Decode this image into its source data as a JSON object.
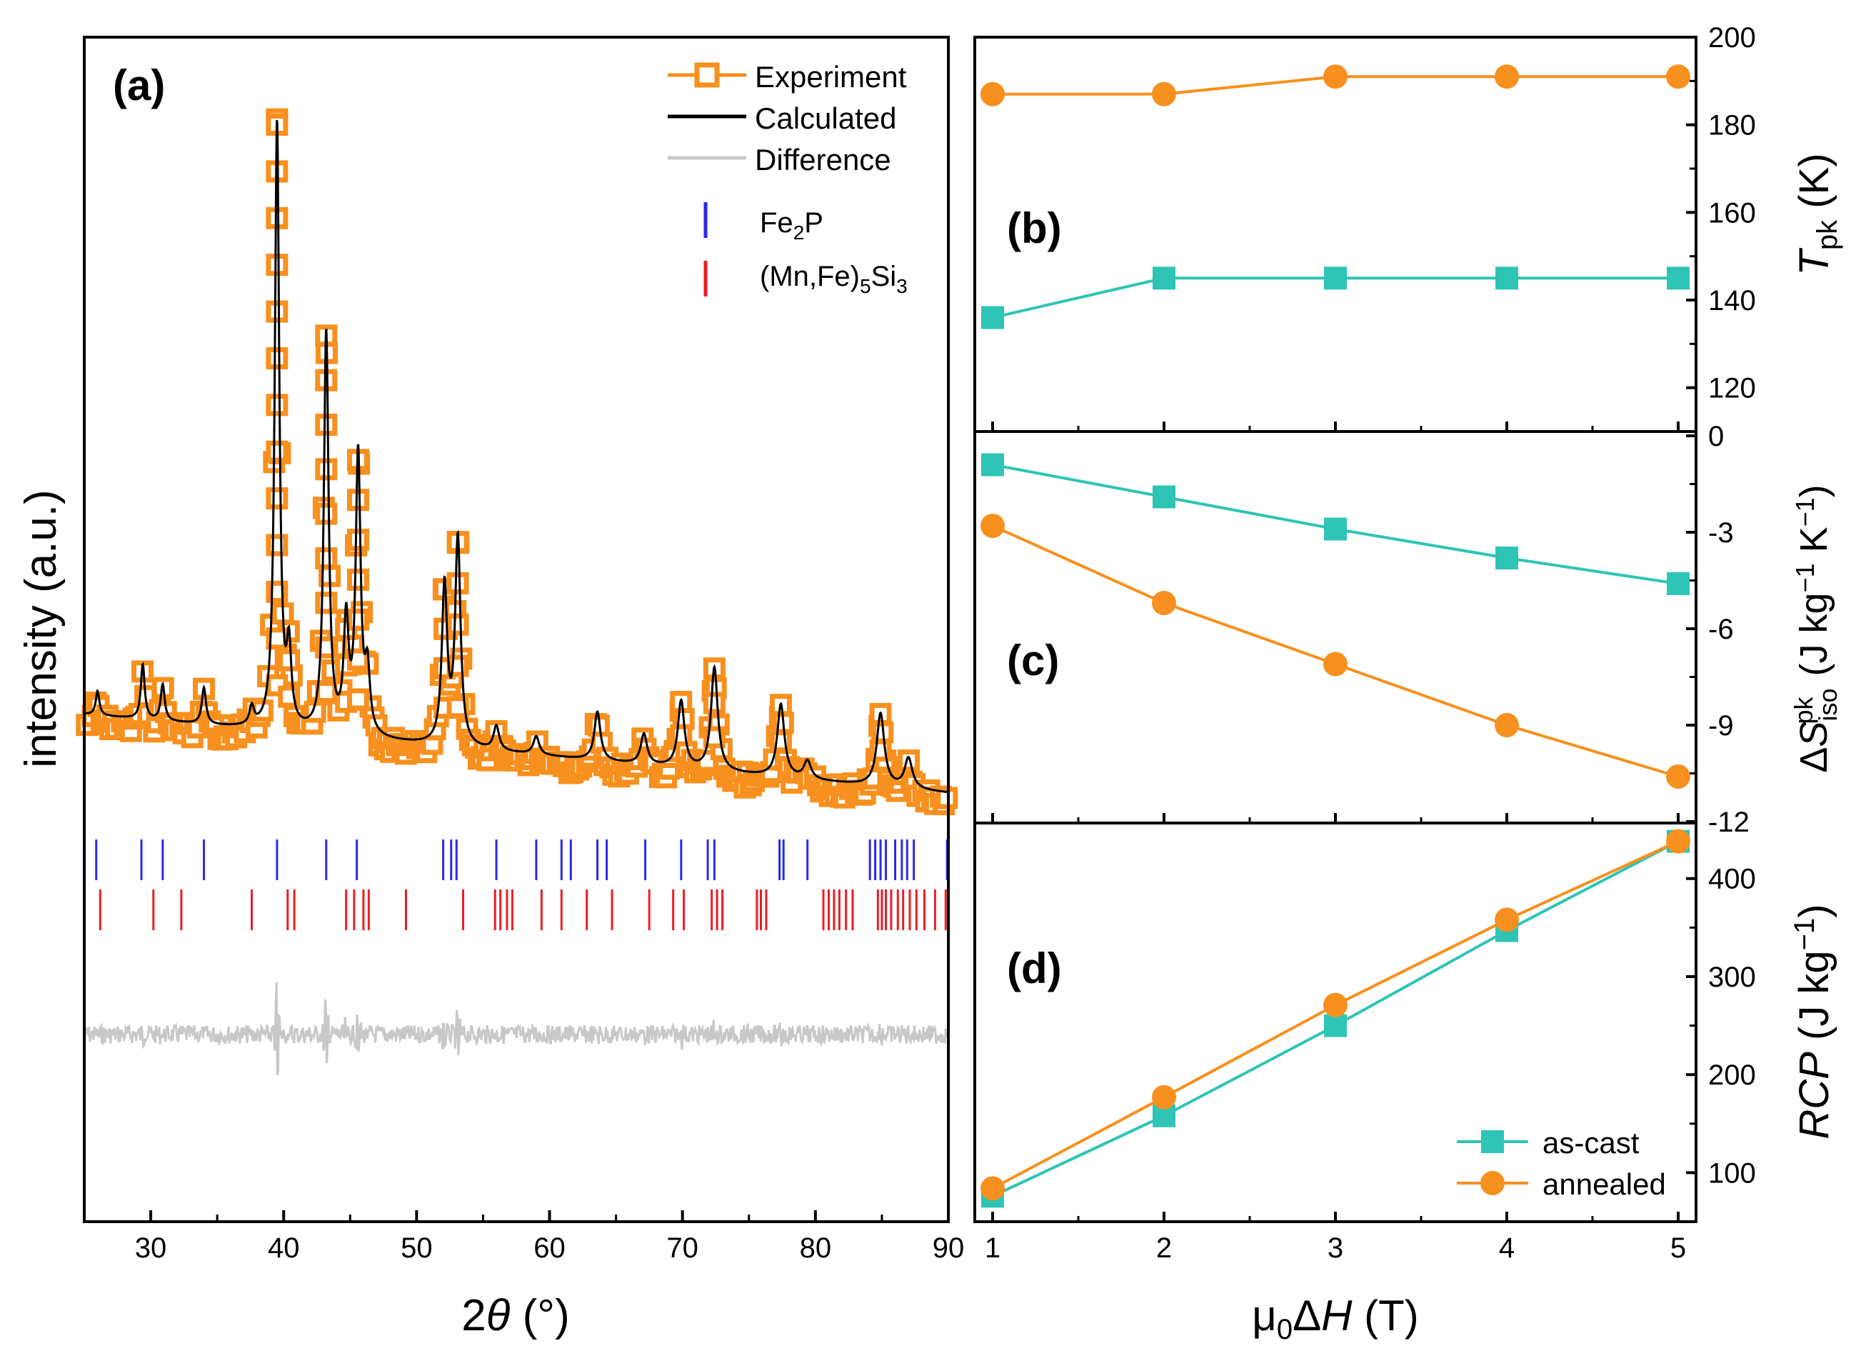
{
  "colors": {
    "experiment": "#f7901e",
    "calculated": "#000000",
    "difference": "#c8c8c8",
    "fe2p": "#2a2aee",
    "mn5si3": "#ee1c24",
    "as_cast": "#2ec4b6",
    "annealed": "#f7901e"
  },
  "panel_a": {
    "label": "(a)",
    "xlabel": "2θ (°)",
    "ylabel": "intensity (a.u.)",
    "xlim": [
      25,
      90
    ],
    "xticks": [
      "30",
      "40",
      "50",
      "60",
      "70",
      "80",
      "90"
    ],
    "legend": {
      "experiment": "Experiment",
      "calculated": "Calculated",
      "difference": "Difference",
      "fe2p": "Fe2P",
      "mn5si3": "(Mn,Fe)5Si3"
    }
  },
  "panel_b": {
    "label": "(b)",
    "ylabel": "Tpk (K)",
    "yticks": [
      "120",
      "140",
      "160",
      "180",
      "200"
    ]
  },
  "panel_c": {
    "label": "(c)",
    "ylabel": "ΔSisopk (J kg−1 K−1)",
    "yticks": [
      "0",
      "-3",
      "-6",
      "-9",
      "-12"
    ]
  },
  "panel_d": {
    "label": "(d)",
    "ylabel": "RCP (J kg−1)",
    "yticks": [
      "100",
      "200",
      "300",
      "400"
    ],
    "legend": {
      "as_cast": "as-cast",
      "annealed": "annealed"
    }
  },
  "right_xlabel": "μ0ΔH (T)",
  "right_xticks": [
    "1",
    "2",
    "3",
    "4",
    "5"
  ],
  "chart_data": [
    {
      "type": "line",
      "panel": "(a)",
      "xlabel": "2θ (°)",
      "ylabel": "intensity (a.u.)",
      "xlim": [
        25,
        90
      ],
      "peaks_calculated": [
        {
          "x": 26.0,
          "h": 0.04
        },
        {
          "x": 29.4,
          "h": 0.09
        },
        {
          "x": 30.9,
          "h": 0.06
        },
        {
          "x": 34.0,
          "h": 0.06
        },
        {
          "x": 37.6,
          "h": 0.03
        },
        {
          "x": 39.5,
          "h": 1.0
        },
        {
          "x": 40.4,
          "h": 0.12
        },
        {
          "x": 43.2,
          "h": 0.66
        },
        {
          "x": 44.7,
          "h": 0.18
        },
        {
          "x": 45.6,
          "h": 0.46
        },
        {
          "x": 46.3,
          "h": 0.1
        },
        {
          "x": 52.1,
          "h": 0.26
        },
        {
          "x": 53.1,
          "h": 0.34
        },
        {
          "x": 56.0,
          "h": 0.04
        },
        {
          "x": 59.0,
          "h": 0.03
        },
        {
          "x": 63.6,
          "h": 0.08
        },
        {
          "x": 67.1,
          "h": 0.05
        },
        {
          "x": 69.9,
          "h": 0.11
        },
        {
          "x": 72.4,
          "h": 0.17
        },
        {
          "x": 77.4,
          "h": 0.12
        },
        {
          "x": 79.4,
          "h": 0.03
        },
        {
          "x": 84.9,
          "h": 0.12
        },
        {
          "x": 87.0,
          "h": 0.05
        }
      ],
      "reflections_fe2p": [
        25.9,
        29.3,
        30.9,
        34.0,
        39.5,
        43.2,
        45.5,
        52.0,
        52.6,
        53.0,
        56.0,
        59.0,
        60.9,
        61.6,
        63.6,
        64.3,
        67.2,
        69.9,
        71.9,
        72.4,
        77.3,
        77.6,
        79.4,
        84.1,
        84.5,
        84.9,
        85.3,
        86.0,
        86.5,
        86.9,
        87.4,
        89.9
      ],
      "reflections_mn5si3": [
        26.2,
        30.2,
        32.3,
        37.6,
        40.3,
        40.8,
        44.7,
        45.3,
        46.0,
        46.4,
        49.2,
        53.5,
        55.9,
        56.3,
        56.8,
        57.2,
        59.4,
        60.9,
        62.8,
        64.7,
        67.5,
        69.3,
        70.1,
        72.2,
        72.6,
        73.0,
        75.6,
        75.9,
        76.3,
        80.6,
        81.0,
        81.4,
        81.8,
        82.3,
        82.8,
        84.7,
        85.0,
        85.3,
        85.7,
        86.2,
        86.6,
        87.1,
        87.6,
        88.2,
        89.0,
        89.8
      ]
    },
    {
      "type": "line",
      "panel": "(b)",
      "x": [
        1,
        2,
        3,
        4,
        5
      ],
      "ylim": [
        110,
        200
      ],
      "series": [
        {
          "name": "as-cast",
          "values": [
            136,
            145,
            145,
            145,
            145
          ]
        },
        {
          "name": "annealed",
          "values": [
            187,
            187,
            191,
            191,
            191
          ]
        }
      ]
    },
    {
      "type": "line",
      "panel": "(c)",
      "x": [
        1,
        2,
        3,
        4,
        5
      ],
      "ylim": [
        -12,
        0
      ],
      "series": [
        {
          "name": "as-cast",
          "values": [
            -0.9,
            -1.9,
            -2.9,
            -3.8,
            -4.6
          ]
        },
        {
          "name": "annealed",
          "values": [
            -2.8,
            -5.2,
            -7.1,
            -9.0,
            -10.6
          ]
        }
      ]
    },
    {
      "type": "line",
      "panel": "(d)",
      "x": [
        1,
        2,
        3,
        4,
        5
      ],
      "ylim": [
        50,
        445
      ],
      "series": [
        {
          "name": "as-cast",
          "values": [
            76,
            158,
            250,
            347,
            438
          ]
        },
        {
          "name": "annealed",
          "values": [
            84,
            177,
            271,
            358,
            438
          ]
        }
      ]
    }
  ]
}
